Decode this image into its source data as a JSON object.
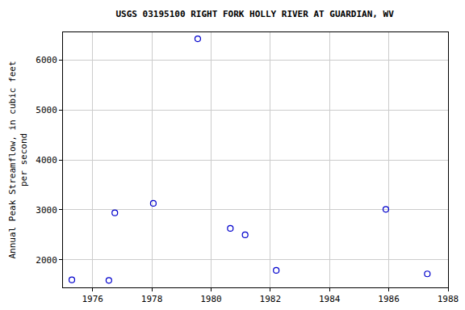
{
  "chart_data": {
    "type": "scatter",
    "title": "USGS 03195100 RIGHT FORK HOLLY RIVER AT GUARDIAN, WV",
    "y_label": "Annual Peak Streamflow, in cubic feet\nper second",
    "x": [
      1975.3,
      1976.55,
      1976.75,
      1978.05,
      1979.55,
      1980.65,
      1981.15,
      1982.2,
      1985.9,
      1987.3
    ],
    "values": [
      1600,
      1590,
      2940,
      3130,
      6420,
      2630,
      2500,
      1790,
      3010,
      1720
    ],
    "color": "#0000cc",
    "marker": "open circle",
    "xlim": [
      1975,
      1988
    ],
    "xticks": [
      1976,
      1978,
      1980,
      1982,
      1984,
      1986,
      1988
    ],
    "ylim": [
      1450,
      6550
    ],
    "yticks": [
      2000,
      3000,
      4000,
      5000,
      6000
    ],
    "grid": true
  }
}
